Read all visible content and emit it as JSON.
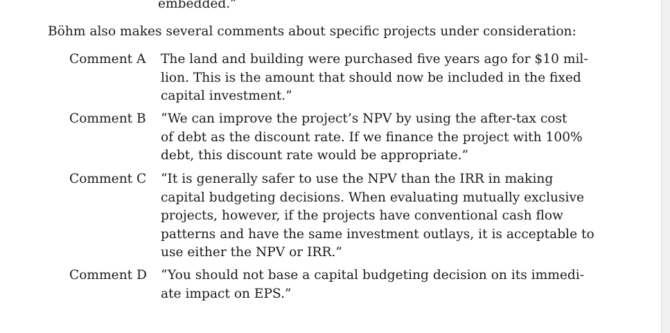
{
  "document": {
    "top_continuation": "embedded.”",
    "intro": "Böhm also makes several comments about specific projects under consideration:",
    "comments": [
      {
        "label": "Comment A",
        "lines": [
          "The land and building were purchased five years ago for $10 mil-",
          "lion. This is the amount that should now be included in the fixed",
          "capital investment.”"
        ]
      },
      {
        "label": "Comment B",
        "lines": [
          "“We can improve the project’s NPV by using the after-tax cost",
          "of debt as the discount rate. If we finance the project with 100%",
          "debt, this discount rate would be appropriate.”"
        ]
      },
      {
        "label": "Comment C",
        "lines": [
          "“It is generally safer to use the NPV than the IRR in making",
          "capital budgeting decisions. When evaluating mutually exclusive",
          "projects, however, if the projects have conventional cash flow",
          "patterns and have the same investment outlays, it is acceptable to",
          "use either the NPV or IRR.”"
        ]
      },
      {
        "label": "Comment D",
        "lines": [
          "“You should not base a capital budgeting decision on its immedi-",
          "ate impact on EPS.”"
        ]
      }
    ]
  }
}
